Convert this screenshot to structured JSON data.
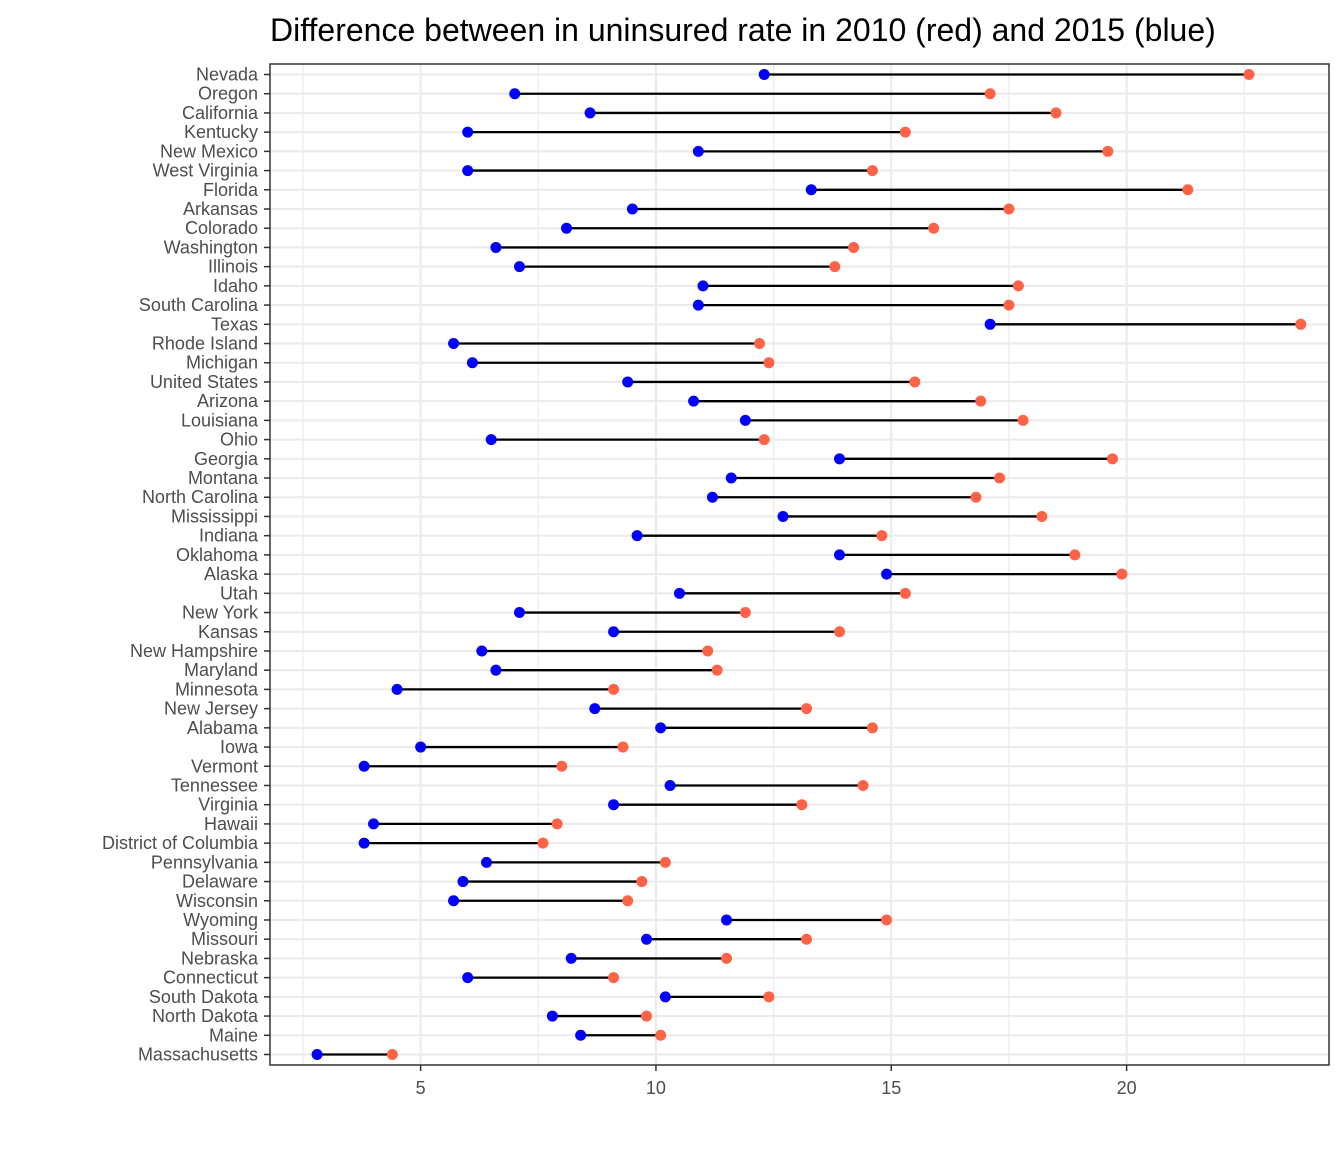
{
  "chart_data": {
    "type": "dumbbell",
    "title": "Difference between in uninsured rate in 2010 (red) and 2015 (blue)",
    "xlabel": "",
    "ylabel": "",
    "xlim": [
      1.8,
      24.3
    ],
    "xticks": [
      5,
      10,
      15,
      20
    ],
    "grid": true,
    "colors": {
      "y2010": "#ff6347",
      "y2015": "#0000ff",
      "segment": "#000000",
      "grid": "#ebebeb",
      "panel_border": "#333333"
    },
    "series": [
      {
        "name": "2010",
        "color": "red"
      },
      {
        "name": "2015",
        "color": "blue"
      }
    ],
    "states": [
      {
        "name": "Nevada",
        "y2010": 22.6,
        "y2015": 12.3
      },
      {
        "name": "Oregon",
        "y2010": 17.1,
        "y2015": 7.0
      },
      {
        "name": "California",
        "y2010": 18.5,
        "y2015": 8.6
      },
      {
        "name": "Kentucky",
        "y2010": 15.3,
        "y2015": 6.0
      },
      {
        "name": "New Mexico",
        "y2010": 19.6,
        "y2015": 10.9
      },
      {
        "name": "West Virginia",
        "y2010": 14.6,
        "y2015": 6.0
      },
      {
        "name": "Florida",
        "y2010": 21.3,
        "y2015": 13.3
      },
      {
        "name": "Arkansas",
        "y2010": 17.5,
        "y2015": 9.5
      },
      {
        "name": "Colorado",
        "y2010": 15.9,
        "y2015": 8.1
      },
      {
        "name": "Washington",
        "y2010": 14.2,
        "y2015": 6.6
      },
      {
        "name": "Illinois",
        "y2010": 13.8,
        "y2015": 7.1
      },
      {
        "name": "Idaho",
        "y2010": 17.7,
        "y2015": 11.0
      },
      {
        "name": "South Carolina",
        "y2010": 17.5,
        "y2015": 10.9
      },
      {
        "name": "Texas",
        "y2010": 23.7,
        "y2015": 17.1
      },
      {
        "name": "Rhode Island",
        "y2010": 12.2,
        "y2015": 5.7
      },
      {
        "name": "Michigan",
        "y2010": 12.4,
        "y2015": 6.1
      },
      {
        "name": "United States",
        "y2010": 15.5,
        "y2015": 9.4
      },
      {
        "name": "Arizona",
        "y2010": 16.9,
        "y2015": 10.8
      },
      {
        "name": "Louisiana",
        "y2010": 17.8,
        "y2015": 11.9
      },
      {
        "name": "Ohio",
        "y2010": 12.3,
        "y2015": 6.5
      },
      {
        "name": "Georgia",
        "y2010": 19.7,
        "y2015": 13.9
      },
      {
        "name": "Montana",
        "y2010": 17.3,
        "y2015": 11.6
      },
      {
        "name": "North Carolina",
        "y2010": 16.8,
        "y2015": 11.2
      },
      {
        "name": "Mississippi",
        "y2010": 18.2,
        "y2015": 12.7
      },
      {
        "name": "Indiana",
        "y2010": 14.8,
        "y2015": 9.6
      },
      {
        "name": "Oklahoma",
        "y2010": 18.9,
        "y2015": 13.9
      },
      {
        "name": "Alaska",
        "y2010": 19.9,
        "y2015": 14.9
      },
      {
        "name": "Utah",
        "y2010": 15.3,
        "y2015": 10.5
      },
      {
        "name": "New York",
        "y2010": 11.9,
        "y2015": 7.1
      },
      {
        "name": "Kansas",
        "y2010": 13.9,
        "y2015": 9.1
      },
      {
        "name": "New Hampshire",
        "y2010": 11.1,
        "y2015": 6.3
      },
      {
        "name": "Maryland",
        "y2010": 11.3,
        "y2015": 6.6
      },
      {
        "name": "Minnesota",
        "y2010": 9.1,
        "y2015": 4.5
      },
      {
        "name": "New Jersey",
        "y2010": 13.2,
        "y2015": 8.7
      },
      {
        "name": "Alabama",
        "y2010": 14.6,
        "y2015": 10.1
      },
      {
        "name": "Iowa",
        "y2010": 9.3,
        "y2015": 5.0
      },
      {
        "name": "Vermont",
        "y2010": 8.0,
        "y2015": 3.8
      },
      {
        "name": "Tennessee",
        "y2010": 14.4,
        "y2015": 10.3
      },
      {
        "name": "Virginia",
        "y2010": 13.1,
        "y2015": 9.1
      },
      {
        "name": "Hawaii",
        "y2010": 7.9,
        "y2015": 4.0
      },
      {
        "name": "District of Columbia",
        "y2010": 7.6,
        "y2015": 3.8
      },
      {
        "name": "Pennsylvania",
        "y2010": 10.2,
        "y2015": 6.4
      },
      {
        "name": "Delaware",
        "y2010": 9.7,
        "y2015": 5.9
      },
      {
        "name": "Wisconsin",
        "y2010": 9.4,
        "y2015": 5.7
      },
      {
        "name": "Wyoming",
        "y2010": 14.9,
        "y2015": 11.5
      },
      {
        "name": "Missouri",
        "y2010": 13.2,
        "y2015": 9.8
      },
      {
        "name": "Nebraska",
        "y2010": 11.5,
        "y2015": 8.2
      },
      {
        "name": "Connecticut",
        "y2010": 9.1,
        "y2015": 6.0
      },
      {
        "name": "South Dakota",
        "y2010": 12.4,
        "y2015": 10.2
      },
      {
        "name": "North Dakota",
        "y2010": 9.8,
        "y2015": 7.8
      },
      {
        "name": "Maine",
        "y2010": 10.1,
        "y2015": 8.4
      },
      {
        "name": "Massachusetts",
        "y2010": 4.4,
        "y2015": 2.8
      }
    ]
  }
}
